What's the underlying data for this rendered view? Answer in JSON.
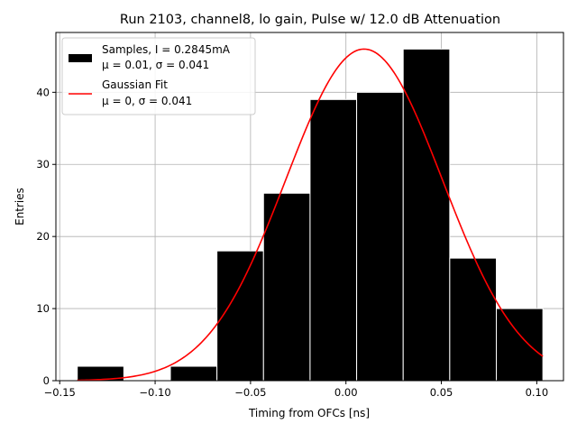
{
  "chart_data": {
    "type": "bar",
    "title": "Run 2103, channel8, lo gain, Pulse w/ 12.0 dB Attenuation",
    "xlabel": "Timing from OFCs [ns]",
    "ylabel": "Entries",
    "xlim": [
      -0.152,
      0.114
    ],
    "ylim": [
      0,
      48.3
    ],
    "xticks": [
      -0.15,
      -0.1,
      -0.05,
      0.0,
      0.05,
      0.1
    ],
    "xtick_labels": [
      "−0.15",
      "−0.10",
      "−0.05",
      "0.00",
      "0.05",
      "0.10"
    ],
    "yticks": [
      0,
      10,
      20,
      30,
      40
    ],
    "ytick_labels": [
      "0",
      "10",
      "20",
      "30",
      "40"
    ],
    "grid": true,
    "legend_position": "top-left",
    "histogram": {
      "name": "Samples, I = 0.2845mA",
      "stats_label": "μ = 0.01, σ = 0.041",
      "color": "#000000",
      "edgecolor": "#ffffff",
      "bin_edges": [
        -0.1408,
        -0.1164,
        -0.092,
        -0.0676,
        -0.0432,
        -0.0188,
        0.0056,
        0.03,
        0.0544,
        0.0788,
        0.1032
      ],
      "counts": [
        2,
        0,
        2,
        18,
        26,
        39,
        40,
        46,
        17,
        10
      ]
    },
    "fit": {
      "name": "Gaussian Fit",
      "stats_label": "μ = 0, σ = 0.041",
      "color": "#ff0000",
      "mu": 0.0095,
      "sigma": 0.041,
      "amplitude": 46.0,
      "x_range": [
        -0.1408,
        0.1032
      ]
    }
  }
}
